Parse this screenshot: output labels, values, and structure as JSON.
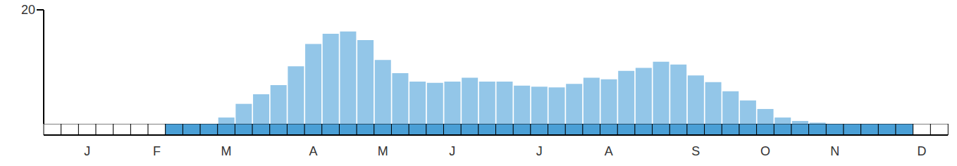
{
  "chart_data": {
    "type": "bar",
    "categories": [
      null,
      null,
      "J",
      null,
      null,
      null,
      "F",
      null,
      null,
      null,
      "M",
      null,
      null,
      null,
      null,
      "A",
      null,
      null,
      null,
      "M",
      null,
      null,
      null,
      "J",
      null,
      null,
      null,
      null,
      "J",
      null,
      null,
      null,
      "A",
      null,
      null,
      null,
      null,
      "S",
      null,
      null,
      null,
      "O",
      null,
      null,
      null,
      "N",
      null,
      null,
      null,
      null,
      "D",
      null
    ],
    "values": [
      0,
      0,
      0,
      0,
      0,
      0,
      0,
      0,
      0,
      0,
      1.1,
      3.5,
      5.2,
      6.8,
      10.1,
      14.0,
      15.8,
      16.2,
      14.7,
      11.2,
      8.9,
      7.4,
      7.2,
      7.4,
      8.1,
      7.4,
      7.4,
      6.7,
      6.5,
      6.4,
      7.0,
      8.1,
      7.8,
      9.3,
      9.8,
      10.9,
      10.4,
      8.5,
      7.3,
      5.7,
      4.1,
      2.6,
      1.1,
      0.5,
      0.2,
      0,
      0,
      0,
      0,
      0,
      0,
      0
    ],
    "color": "#93c6e8",
    "ylim": [
      0,
      20
    ],
    "yticks": [
      20
    ],
    "presence": {
      "color": "#4a9fd6",
      "values": [
        0,
        0,
        0,
        0,
        0,
        0,
        0,
        1,
        1,
        1,
        1,
        1,
        1,
        1,
        1,
        1,
        1,
        1,
        1,
        1,
        1,
        1,
        1,
        1,
        1,
        1,
        1,
        1,
        1,
        1,
        1,
        1,
        1,
        1,
        1,
        1,
        1,
        1,
        1,
        1,
        1,
        1,
        1,
        1,
        1,
        1,
        1,
        1,
        1,
        1,
        0,
        0
      ]
    }
  }
}
